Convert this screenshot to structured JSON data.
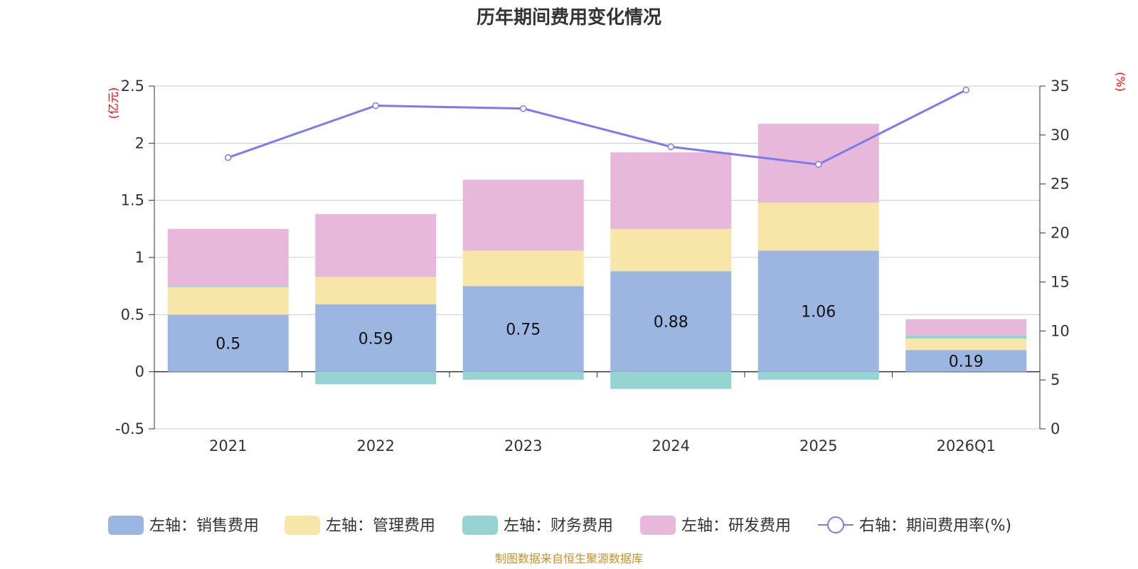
{
  "chart_data": {
    "type": "bar",
    "title": "历年期间费用变化情况",
    "categories": [
      "2021",
      "2022",
      "2023",
      "2024",
      "2025",
      "2026Q1"
    ],
    "left_axis": {
      "unit": "(亿元)",
      "ylim": [
        -0.5,
        2.5
      ],
      "ticks": [
        "-0.5",
        "0",
        "0.5",
        "1",
        "1.5",
        "2",
        "2.5"
      ]
    },
    "right_axis": {
      "unit": "(%)",
      "ylim": [
        0,
        35
      ],
      "ticks": [
        "0",
        "5",
        "10",
        "15",
        "20",
        "25",
        "30",
        "35"
      ]
    },
    "series": [
      {
        "name": "左轴：销售费用",
        "type": "bar",
        "stacked": true,
        "color": "#9bb6e0",
        "values": [
          0.5,
          0.59,
          0.75,
          0.88,
          1.06,
          0.19
        ],
        "labels": [
          "0.5",
          "0.59",
          "0.75",
          "0.88",
          "1.06",
          "0.19"
        ]
      },
      {
        "name": "左轴：管理费用",
        "type": "bar",
        "stacked": true,
        "color": "#f8e6a8",
        "values": [
          0.24,
          0.24,
          0.31,
          0.37,
          0.42,
          0.1
        ]
      },
      {
        "name": "左轴：财务费用",
        "type": "bar",
        "stacked": true,
        "color": "#96d3d3",
        "values": [
          0.01,
          -0.11,
          -0.07,
          -0.15,
          -0.07,
          0.03
        ]
      },
      {
        "name": "左轴：研发费用",
        "type": "bar",
        "stacked": true,
        "color": "#e7b8da",
        "values": [
          0.5,
          0.55,
          0.62,
          0.67,
          0.69,
          0.14
        ]
      },
      {
        "name": "右轴：期间费用率(%)",
        "type": "line",
        "axis": "right",
        "color": "#7b7bf0",
        "values": [
          27.7,
          33.0,
          32.7,
          28.8,
          27.0,
          34.6
        ]
      }
    ],
    "legend_position": "bottom",
    "source": "制图数据来自恒生聚源数据库"
  }
}
